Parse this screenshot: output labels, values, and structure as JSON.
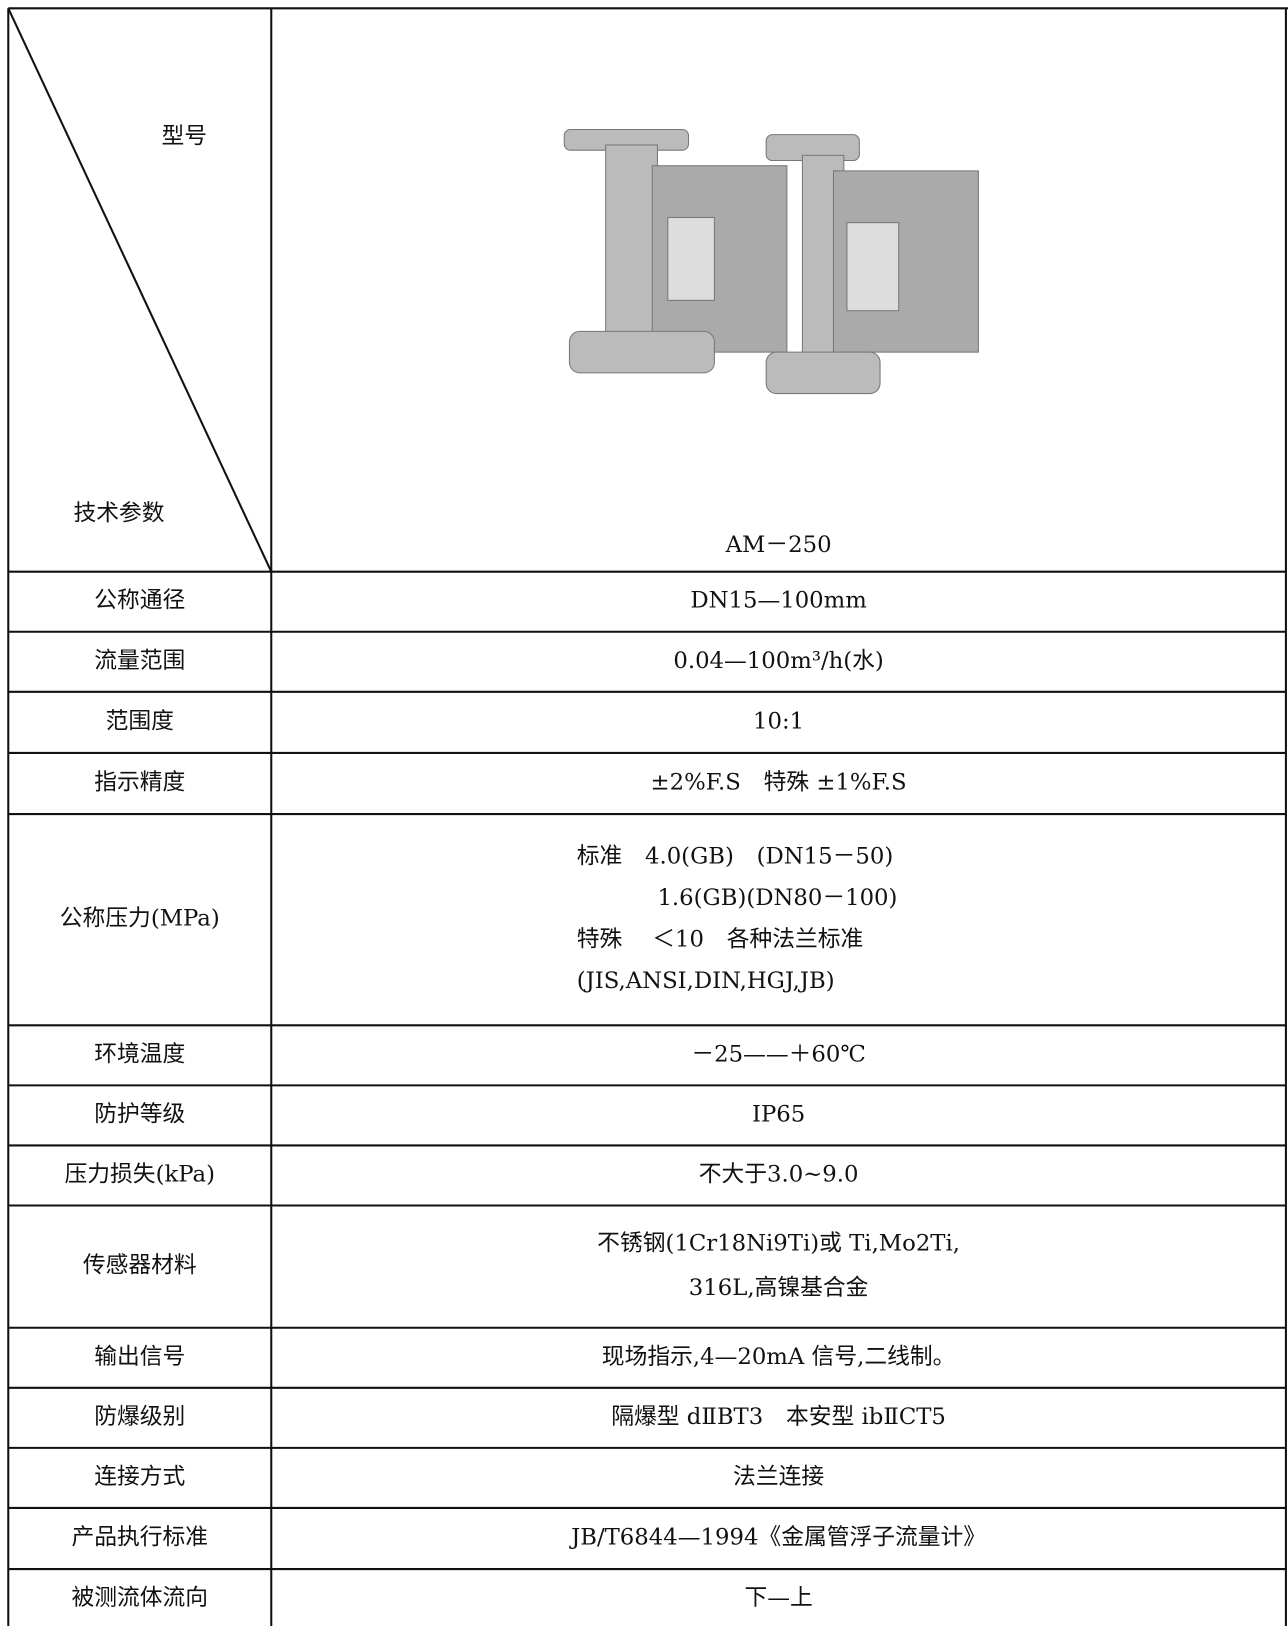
{
  "header": {
    "model_label": "型号",
    "params_label": "技术参数",
    "model": "AM－250"
  },
  "rows": [
    {
      "label": "公称通径",
      "value": [
        "DN15—100mm"
      ]
    },
    {
      "label": "流量范围",
      "value": [
        "0.04—100m³/h(水)"
      ]
    },
    {
      "label": "范围度",
      "value": [
        "10:1"
      ]
    },
    {
      "label": "指示精度",
      "value": [
        "±2%F.S　特殊 ±1%F.S"
      ]
    },
    {
      "label": "公称压力(MPa)",
      "value": [
        "标准　4.0(GB)　(DN15－50)",
        "1.6(GB)(DN80－100)",
        "特殊　 ＜10　各种法兰标准",
        "(JIS,ANSI,DIN,HGJ,JB)"
      ]
    },
    {
      "label": "环境温度",
      "value": [
        "－25——＋60℃"
      ]
    },
    {
      "label": "防护等级",
      "value": [
        "IP65"
      ]
    },
    {
      "label": "压力损失(kPa)",
      "value": [
        "不大于3.0~9.0"
      ]
    },
    {
      "label": "传感器材料",
      "value": [
        "不锈钢(1Cr18Ni9Ti)或 Ti,Mo2Ti,",
        "316L,高镍基合金"
      ]
    },
    {
      "label": "输出信号",
      "value": [
        "现场指示,4—20mA 信号,二线制。"
      ]
    },
    {
      "label": "防爆级别",
      "value": [
        "隔爆型 dⅡBT3　本安型 ibⅡCT5"
      ]
    },
    {
      "label": "连接方式",
      "value": [
        "法兰连接"
      ]
    },
    {
      "label": "产品执行标准",
      "value": [
        "JB/T6844—1994《金属管浮子流量计》"
      ]
    },
    {
      "label": "被测流体流向",
      "value": [
        "下—上"
      ]
    }
  ]
}
